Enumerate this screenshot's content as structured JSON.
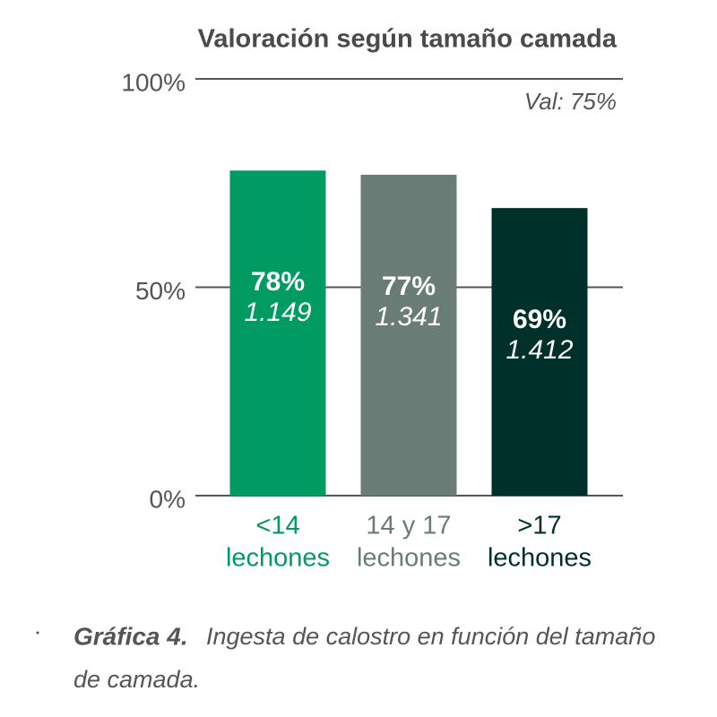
{
  "chart_data": {
    "type": "bar",
    "title": "Valoración según tamaño camada",
    "annotation": "Val: 75%",
    "categories": [
      [
        "<14",
        "lechones"
      ],
      [
        "14 y 17",
        "lechones"
      ],
      [
        ">17",
        "lechones"
      ]
    ],
    "values": [
      78,
      77,
      69
    ],
    "value_labels": [
      "78%",
      "77%",
      "69%"
    ],
    "secondary_labels": [
      "1.149",
      "1.341",
      "1.412"
    ],
    "colors": [
      "#009a63",
      "#6a7c76",
      "#00302a"
    ],
    "ylim": [
      0,
      100
    ],
    "yticks": [
      {
        "value": 0,
        "label": "0%"
      },
      {
        "value": 50,
        "label": "50%"
      },
      {
        "value": 100,
        "label": "100%"
      }
    ],
    "grid": true
  },
  "caption": {
    "label": "Gráfica 4.",
    "lines": [
      "Ingesta de calostro en función del tamaño",
      "de camada."
    ]
  }
}
